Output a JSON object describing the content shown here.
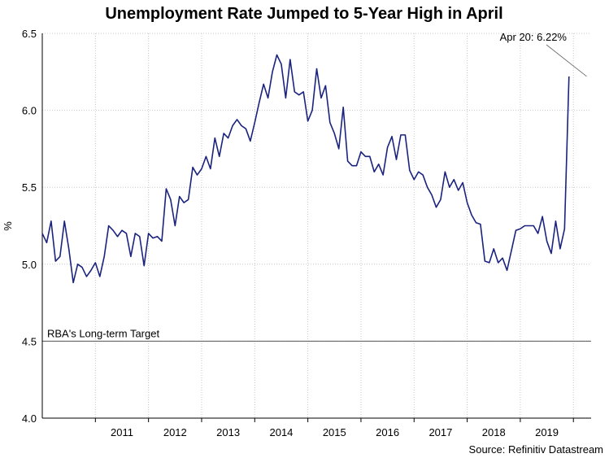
{
  "chart_data": {
    "type": "line",
    "title": "Unemployment Rate Jumped to 5-Year High in April",
    "ylabel": "%",
    "xlabel": "",
    "ylim": [
      4.0,
      6.5
    ],
    "yticks": [
      "4.0",
      "4.5",
      "5.0",
      "5.5",
      "6.0",
      "6.5"
    ],
    "xticks": [
      "2011",
      "2012",
      "2013",
      "2014",
      "2015",
      "2016",
      "2017",
      "2018",
      "2019"
    ],
    "grid": true,
    "x_start": "2010-01",
    "x_end": "2020-05",
    "series": [
      {
        "color": "#1a237e",
        "values": [
          5.2,
          5.14,
          5.28,
          5.02,
          5.05,
          5.28,
          5.1,
          4.88,
          5.0,
          4.98,
          4.92,
          4.96,
          5.01,
          4.92,
          5.05,
          5.25,
          5.22,
          5.18,
          5.22,
          5.2,
          5.05,
          5.2,
          5.18,
          4.99,
          5.2,
          5.17,
          5.18,
          5.15,
          5.49,
          5.42,
          5.25,
          5.44,
          5.4,
          5.42,
          5.63,
          5.58,
          5.62,
          5.7,
          5.62,
          5.82,
          5.7,
          5.85,
          5.82,
          5.9,
          5.94,
          5.9,
          5.88,
          5.8,
          5.92,
          6.05,
          6.17,
          6.08,
          6.25,
          6.36,
          6.3,
          6.08,
          6.33,
          6.12,
          6.1,
          6.12,
          5.93,
          6.0,
          6.27,
          6.08,
          6.16,
          5.92,
          5.85,
          5.75,
          6.02,
          5.67,
          5.64,
          5.64,
          5.73,
          5.7,
          5.7,
          5.6,
          5.65,
          5.58,
          5.76,
          5.83,
          5.68,
          5.84,
          5.84,
          5.61,
          5.55,
          5.6,
          5.58,
          5.5,
          5.45,
          5.37,
          5.42,
          5.6,
          5.5,
          5.55,
          5.48,
          5.53,
          5.4,
          5.32,
          5.27,
          5.26,
          5.02,
          5.01,
          5.1,
          5.01,
          5.04,
          4.96,
          5.09,
          5.22,
          5.23,
          5.25,
          5.25,
          5.25,
          5.2,
          5.31,
          5.15,
          5.07,
          5.28,
          5.1,
          5.23,
          6.22
        ]
      }
    ],
    "reference_lines": [
      {
        "y": 4.5,
        "label": "RBA's Long-term Target"
      }
    ],
    "annotations": [
      {
        "text": "Apr 20: 6.22%",
        "x": "2020-04",
        "y": 6.22
      }
    ],
    "source": "Source: Refinitiv Datastream"
  }
}
